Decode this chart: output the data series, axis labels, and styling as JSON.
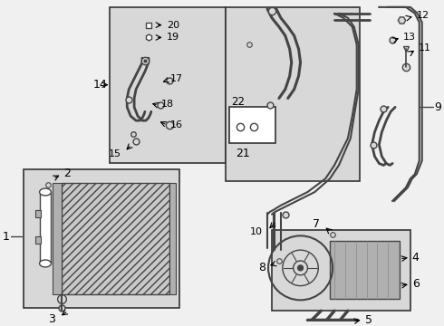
{
  "bg_color": "#f0f0f0",
  "line_color": "#444444",
  "border_color": "#333333",
  "white": "#ffffff",
  "gray_light": "#d8d8d8",
  "gray_mid": "#b0b0b0"
}
